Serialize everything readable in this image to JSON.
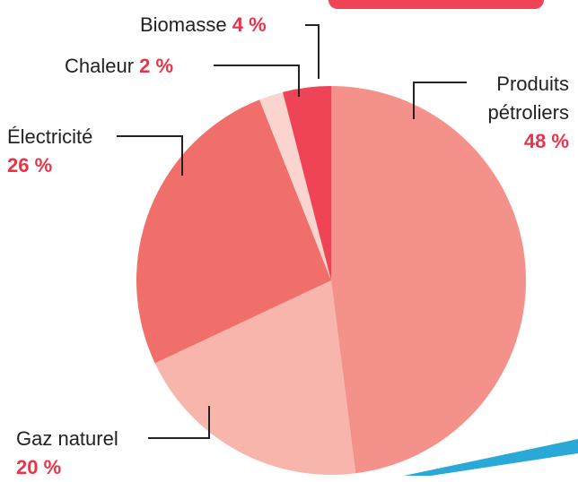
{
  "chart_data": {
    "type": "pie",
    "categories": [
      "Produits pétroliers",
      "Gaz naturel",
      "Électricité",
      "Chaleur",
      "Biomasse"
    ],
    "values": [
      48,
      20,
      26,
      2,
      4
    ],
    "value_labels": [
      "48 %",
      "20 %",
      "26 %",
      "2 %",
      "4 %"
    ],
    "colors": [
      "#f4918a",
      "#f7b5ab",
      "#f06f6a",
      "#fcd4cf",
      "#ee4456"
    ],
    "start_angle": 0,
    "direction": "clockwise"
  }
}
